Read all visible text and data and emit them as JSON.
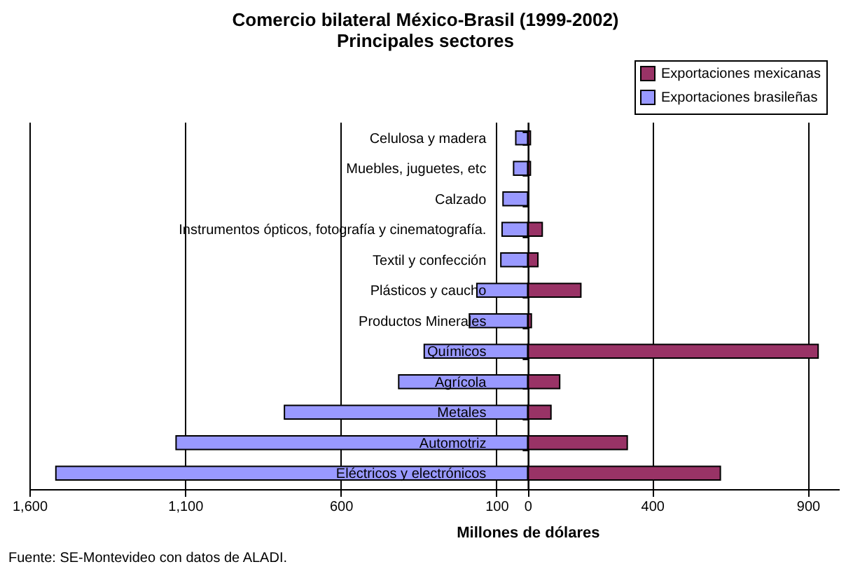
{
  "chart_data": {
    "type": "bar",
    "orientation": "horizontal",
    "title": "Comercio bilateral México-Brasil (1999-2002)",
    "subtitle": "Principales sectores",
    "xlabel": "Millones de dólares",
    "categories": [
      "Celulosa y madera",
      "Muebles, juguetes, etc",
      "Calzado",
      "Instrumentos ópticos, fotografía y cinematografía.",
      "Textil y confección",
      "Plásticos y caucho",
      "Productos Minerales",
      "Químicos",
      "Agrícola",
      "Metales",
      "Automotriz",
      "Eléctricos y electrónicos"
    ],
    "series": [
      {
        "name": "Exportaciones mexicanas",
        "color": "#993366",
        "values": [
          9,
          9,
          null,
          47,
          33,
          171,
          12,
          933,
          103,
          75,
          320,
          619
        ]
      },
      {
        "name": "Exportaciones brasileñas",
        "color": "#9999ff",
        "values": [
          -38,
          -45,
          -79,
          -82,
          -86,
          -163,
          -187,
          -332,
          -414,
          -781,
          -1129,
          -1515
        ]
      }
    ],
    "xlim": [
      -1600,
      1000
    ],
    "xticks": [
      {
        "value": -1600,
        "label": "1,600"
      },
      {
        "value": -1100,
        "label": "1,100"
      },
      {
        "value": -600,
        "label": "600"
      },
      {
        "value": -100,
        "label": "100"
      },
      0,
      400,
      900
    ],
    "stacked": true,
    "grid": "x",
    "legend": "top right",
    "annotations": [
      "Fuente: SE-Montevideo  con datos de ALADI."
    ]
  }
}
